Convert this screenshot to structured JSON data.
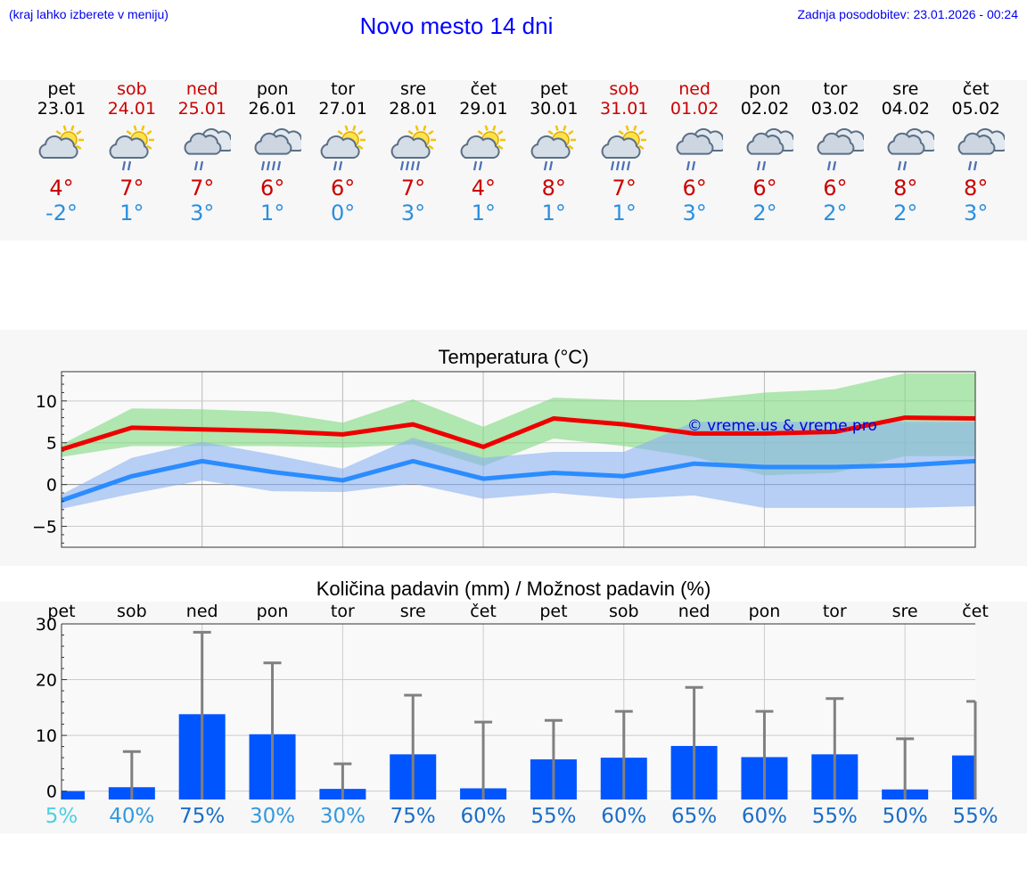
{
  "header": {
    "hint": "(kraj lahko izberete v meniju)",
    "title": "Novo mesto 14 dni",
    "updated": "Zadnja posodobitev: 23.01.2026 - 00:24"
  },
  "days": [
    {
      "name": "pet",
      "date": "23.01",
      "weekend": false,
      "icon": "sun-cloud-icon",
      "tmax": "4°",
      "tmin": "-2°"
    },
    {
      "name": "sob",
      "date": "24.01",
      "weekend": true,
      "icon": "sun-cloud-rain-icon",
      "tmax": "7°",
      "tmin": "1°"
    },
    {
      "name": "ned",
      "date": "25.01",
      "weekend": true,
      "icon": "cloud-rain-icon",
      "tmax": "7°",
      "tmin": "3°"
    },
    {
      "name": "pon",
      "date": "26.01",
      "weekend": false,
      "icon": "cloud-heavy-rain-icon",
      "tmax": "6°",
      "tmin": "1°"
    },
    {
      "name": "tor",
      "date": "27.01",
      "weekend": false,
      "icon": "sun-cloud-rain-icon",
      "tmax": "6°",
      "tmin": "0°"
    },
    {
      "name": "sre",
      "date": "28.01",
      "weekend": false,
      "icon": "sun-cloud-heavy-rain-icon",
      "tmax": "7°",
      "tmin": "3°"
    },
    {
      "name": "čet",
      "date": "29.01",
      "weekend": false,
      "icon": "sun-cloud-rain-icon",
      "tmax": "4°",
      "tmin": "1°"
    },
    {
      "name": "pet",
      "date": "30.01",
      "weekend": false,
      "icon": "sun-cloud-rain-icon",
      "tmax": "8°",
      "tmin": "1°"
    },
    {
      "name": "sob",
      "date": "31.01",
      "weekend": true,
      "icon": "sun-cloud-heavy-rain-icon",
      "tmax": "7°",
      "tmin": "1°"
    },
    {
      "name": "ned",
      "date": "01.02",
      "weekend": true,
      "icon": "cloud-rain-icon",
      "tmax": "6°",
      "tmin": "3°"
    },
    {
      "name": "pon",
      "date": "02.02",
      "weekend": false,
      "icon": "cloud-rain-icon",
      "tmax": "6°",
      "tmin": "2°"
    },
    {
      "name": "tor",
      "date": "03.02",
      "weekend": false,
      "icon": "cloud-rain-icon",
      "tmax": "6°",
      "tmin": "2°"
    },
    {
      "name": "sre",
      "date": "04.02",
      "weekend": false,
      "icon": "cloud-rain-icon",
      "tmax": "8°",
      "tmin": "2°"
    },
    {
      "name": "čet",
      "date": "05.02",
      "weekend": false,
      "icon": "cloud-rain-icon",
      "tmax": "8°",
      "tmin": "3°"
    }
  ],
  "colors": {
    "weekend": "#cc0000",
    "weekday": "#000000",
    "tmax": "#cc0000",
    "tmin": "#2a8fe0",
    "bar": "#0055ff"
  },
  "chart_data": [
    {
      "type": "line",
      "title": "Temperatura (°C)",
      "watermark": "© vreme.us & vreme.pro",
      "ylim": [
        -7.5,
        13.5
      ],
      "yticks": [
        -5,
        0,
        5,
        10
      ],
      "ytick_labels": [
        "−5",
        "0",
        "5",
        "10"
      ],
      "x": [
        0,
        1,
        2,
        3,
        4,
        5,
        6,
        7,
        8,
        9,
        10,
        11,
        12,
        13
      ],
      "series": [
        {
          "name": "max",
          "color": "#ee0000",
          "values": [
            4.2,
            6.8,
            6.6,
            6.4,
            6.0,
            7.2,
            4.5,
            7.9,
            7.2,
            6.1,
            6.1,
            6.3,
            8.0,
            7.9
          ]
        },
        {
          "name": "min",
          "color": "#2a8cff",
          "values": [
            -1.9,
            1.0,
            2.8,
            1.5,
            0.5,
            2.8,
            0.7,
            1.4,
            1.0,
            2.5,
            2.1,
            2.1,
            2.3,
            2.8
          ]
        }
      ],
      "bands": [
        {
          "name": "max-range",
          "color": "#7fd87f",
          "low": [
            3.3,
            4.6,
            4.6,
            4.6,
            4.4,
            4.8,
            2.2,
            5.5,
            4.6,
            3.3,
            1.1,
            1.4,
            3.4,
            3.4
          ],
          "high": [
            4.8,
            9.1,
            9.0,
            8.7,
            7.4,
            10.2,
            6.9,
            10.4,
            10.1,
            10.1,
            11.0,
            11.4,
            13.3,
            13.3
          ]
        },
        {
          "name": "min-range",
          "color": "#8ab0f2",
          "low": [
            -2.9,
            -1.1,
            0.5,
            -0.8,
            -0.9,
            0.1,
            -1.7,
            -1.0,
            -1.7,
            -1.3,
            -2.8,
            -2.8,
            -2.8,
            -2.6
          ],
          "high": [
            -1.2,
            3.2,
            5.1,
            3.6,
            1.9,
            5.6,
            3.2,
            3.9,
            3.9,
            7.5,
            7.5,
            7.5,
            7.5,
            7.5
          ]
        }
      ]
    },
    {
      "type": "bar",
      "title": "Količina padavin (mm) / Možnost padavin (%)",
      "ylim": [
        -1.5,
        30
      ],
      "yticks": [
        0,
        10,
        20,
        30
      ],
      "categories": [
        "pet",
        "sob",
        "ned",
        "pon",
        "tor",
        "sre",
        "čet",
        "pet",
        "sob",
        "ned",
        "pon",
        "tor",
        "sre",
        "čet"
      ],
      "values": [
        0,
        0.7,
        13.8,
        10.2,
        0.4,
        6.6,
        0.5,
        5.7,
        6.0,
        8.1,
        6.1,
        6.6,
        0.3,
        6.4
      ],
      "error_high": [
        0,
        7.1,
        28.5,
        23.0,
        4.9,
        17.2,
        12.4,
        12.7,
        14.3,
        18.6,
        14.3,
        16.6,
        9.4,
        16.1
      ],
      "probability": [
        "5%",
        "40%",
        "75%",
        "30%",
        "30%",
        "75%",
        "60%",
        "55%",
        "60%",
        "65%",
        "60%",
        "55%",
        "50%",
        "55%"
      ],
      "probability_colors": [
        "#4dd0e1",
        "#3399dd",
        "#1a6ec8",
        "#3399dd",
        "#3399dd",
        "#1a6ec8",
        "#1a6ec8",
        "#1a6ec8",
        "#1a6ec8",
        "#1a6ec8",
        "#1a6ec8",
        "#1a6ec8",
        "#1a6ec8",
        "#1a6ec8"
      ]
    }
  ]
}
